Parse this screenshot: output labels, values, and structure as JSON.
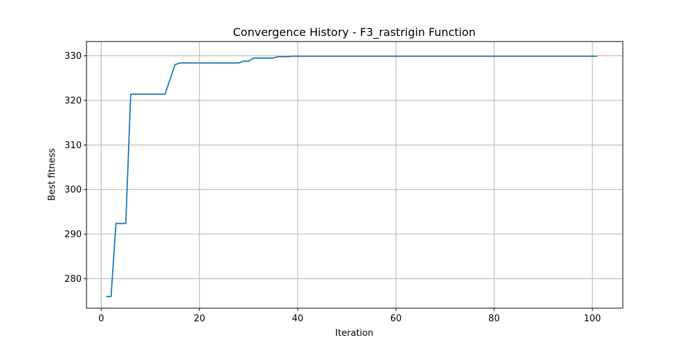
{
  "chart_data": {
    "type": "line",
    "title": "Convergence History - F3_rastrigin Function",
    "xlabel": "Iteration",
    "ylabel": "Best fitness",
    "xlim": [
      -3.0,
      106.2
    ],
    "ylim": [
      273.4,
      333.2
    ],
    "xticks": [
      0,
      20,
      40,
      60,
      80,
      100
    ],
    "yticks": [
      280,
      290,
      300,
      310,
      320,
      330
    ],
    "grid": true,
    "colors": {
      "line": "#1f77b4",
      "grid": "#b0b0b0",
      "axes": "#000000"
    },
    "series": [
      {
        "x": [
          1,
          2,
          3,
          4,
          5,
          6,
          13,
          15,
          16,
          28,
          29,
          30,
          31,
          35,
          36,
          38,
          39,
          101
        ],
        "y": [
          276.0,
          276.0,
          292.4,
          292.4,
          292.4,
          321.4,
          321.4,
          328.0,
          328.4,
          328.4,
          328.8,
          328.8,
          329.5,
          329.5,
          329.8,
          329.8,
          329.9,
          329.9
        ]
      }
    ]
  }
}
